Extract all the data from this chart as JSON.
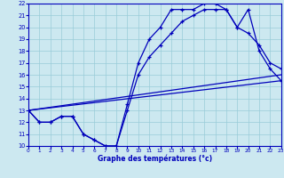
{
  "title": "Graphe des températures (°c)",
  "bg_color": "#cce8f0",
  "line_color": "#0000bb",
  "grid_color": "#99ccd9",
  "xlim": [
    0,
    23
  ],
  "ylim": [
    10,
    22
  ],
  "xticks": [
    0,
    1,
    2,
    3,
    4,
    5,
    6,
    7,
    8,
    9,
    10,
    11,
    12,
    13,
    14,
    15,
    16,
    17,
    18,
    19,
    20,
    21,
    22,
    23
  ],
  "yticks": [
    10,
    11,
    12,
    13,
    14,
    15,
    16,
    17,
    18,
    19,
    20,
    21,
    22
  ],
  "series1_x": [
    0,
    1,
    2,
    3,
    4,
    5,
    6,
    7,
    8,
    9,
    10,
    11,
    12,
    13,
    14,
    15,
    16,
    17,
    18,
    19,
    20,
    21,
    22,
    23
  ],
  "series1_y": [
    13,
    12,
    12,
    12.5,
    12.5,
    11,
    10.5,
    10,
    10,
    13.5,
    17,
    19,
    20,
    21.5,
    21.5,
    21.5,
    22,
    22,
    21.5,
    20,
    21.5,
    18,
    16.5,
    15.5
  ],
  "series2_x": [
    0,
    1,
    2,
    3,
    4,
    5,
    6,
    7,
    8,
    9,
    10,
    11,
    12,
    13,
    14,
    15,
    16,
    17,
    18,
    19,
    20,
    21,
    22,
    23
  ],
  "series2_y": [
    13,
    12,
    12,
    12.5,
    12.5,
    11,
    10.5,
    10,
    10,
    13,
    16,
    17.5,
    18.5,
    19.5,
    20.5,
    21,
    21.5,
    21.5,
    21.5,
    20,
    19.5,
    18.5,
    17,
    16.5
  ],
  "series3_x": [
    0,
    23
  ],
  "series3_y": [
    13,
    15.5
  ],
  "series4_x": [
    0,
    23
  ],
  "series4_y": [
    13,
    16
  ]
}
